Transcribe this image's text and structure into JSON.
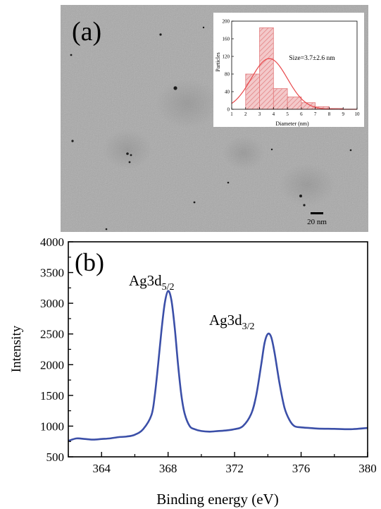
{
  "panel_a": {
    "label": "(a)",
    "scale_bar_label": "20 nm",
    "inset": {
      "annotation": "Size=3.7±2.6 nm",
      "fit_color": "#e8484b",
      "bar_color": "#e27a7c"
    }
  },
  "panel_b": {
    "label": "(b)",
    "peak1_label": {
      "main": "Ag3d",
      "sub": "5/2"
    },
    "peak2_label": {
      "main": "Ag3d",
      "sub": "3/2"
    },
    "line_color": "#3b4fa8"
  },
  "chart_data": [
    {
      "type": "bar",
      "xlabel": "Diameter (nm)",
      "ylabel": "Particles",
      "xlim": [
        1,
        10
      ],
      "ylim": [
        0,
        200
      ],
      "xticks": [
        1,
        2,
        3,
        4,
        5,
        6,
        7,
        8,
        9,
        10
      ],
      "yticks": [
        0,
        40,
        80,
        120,
        160,
        200
      ],
      "bins": [
        {
          "x0": 2.0,
          "x1": 3.0,
          "value": 80
        },
        {
          "x0": 3.0,
          "x1": 4.0,
          "value": 185
        },
        {
          "x0": 4.0,
          "x1": 5.0,
          "value": 47
        },
        {
          "x0": 5.0,
          "x1": 6.0,
          "value": 28
        },
        {
          "x0": 6.0,
          "x1": 7.0,
          "value": 15
        },
        {
          "x0": 7.0,
          "x1": 8.0,
          "value": 6
        },
        {
          "x0": 8.0,
          "x1": 9.0,
          "value": 2
        }
      ],
      "fit": {
        "type": "gaussian",
        "center": 3.7,
        "sigma": 1.3,
        "amplitude": 115
      }
    },
    {
      "type": "line",
      "xlabel": "Binding energy (eV)",
      "ylabel": "Intensity",
      "xlim": [
        362,
        380
      ],
      "ylim": [
        500,
        4000
      ],
      "xticks": [
        364,
        368,
        372,
        376,
        380
      ],
      "yticks": [
        500,
        1000,
        1500,
        2000,
        2500,
        3000,
        3500,
        4000
      ],
      "x": [
        362.0,
        362.5,
        363.0,
        363.5,
        364.0,
        364.5,
        365.0,
        365.5,
        366.0,
        366.5,
        367.0,
        367.2,
        367.4,
        367.6,
        367.8,
        368.0,
        368.2,
        368.4,
        368.6,
        368.8,
        369.0,
        369.3,
        369.6,
        370.0,
        370.5,
        371.0,
        371.5,
        372.0,
        372.5,
        373.0,
        373.3,
        373.6,
        373.8,
        374.0,
        374.2,
        374.4,
        374.7,
        375.0,
        375.3,
        375.6,
        376.0,
        376.5,
        377.0,
        378.0,
        379.0,
        380.0
      ],
      "y": [
        760,
        800,
        790,
        780,
        790,
        800,
        820,
        830,
        860,
        950,
        1180,
        1500,
        2000,
        2550,
        3000,
        3200,
        3050,
        2600,
        2000,
        1500,
        1200,
        1000,
        950,
        920,
        910,
        920,
        930,
        950,
        1000,
        1200,
        1500,
        2000,
        2350,
        2500,
        2450,
        2200,
        1700,
        1300,
        1100,
        1000,
        980,
        970,
        960,
        955,
        950,
        970
      ]
    }
  ]
}
